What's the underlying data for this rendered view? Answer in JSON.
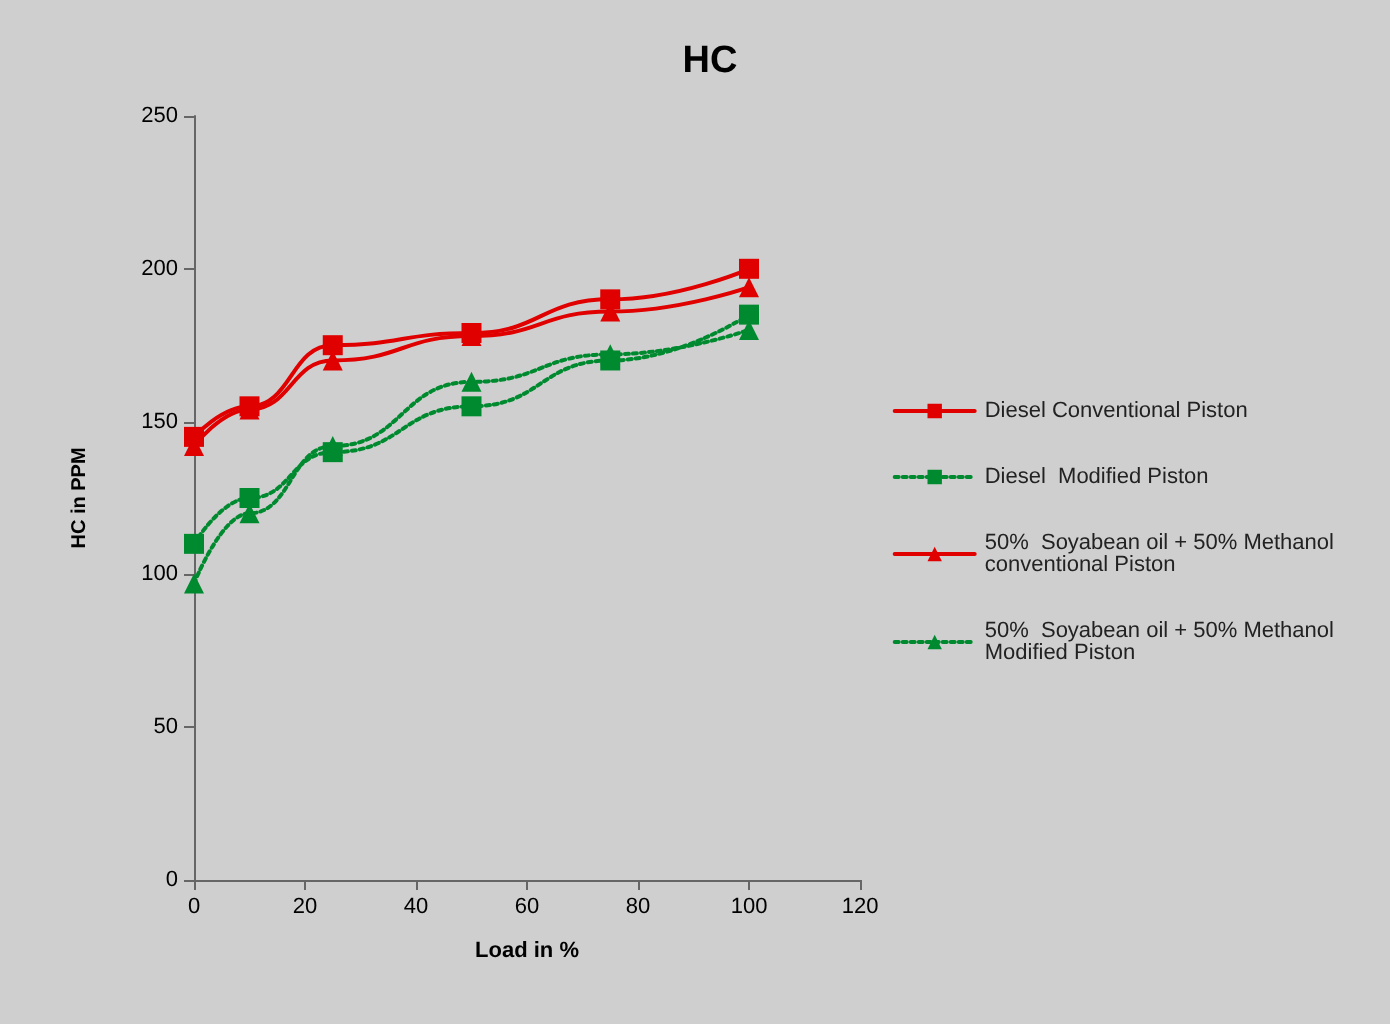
{
  "chart_data": {
    "type": "line",
    "title": "HC",
    "xlabel": "Load in %",
    "ylabel": "HC in PPM",
    "x": [
      0,
      10,
      25,
      50,
      75,
      100
    ],
    "series": [
      {
        "name": "Diesel Conventional Piston",
        "color": "#e00000",
        "marker": "square",
        "line_style": "solid",
        "values": [
          145,
          155,
          175,
          179,
          190,
          200
        ]
      },
      {
        "name": "Diesel  Modified Piston",
        "color": "#008a30",
        "marker": "square",
        "line_style": "dotted",
        "values": [
          110,
          125,
          140,
          155,
          170,
          185
        ]
      },
      {
        "name": "50%  Soyabean oil + 50% Methanol conventional Piston",
        "color": "#e00000",
        "marker": "triangle",
        "line_style": "solid",
        "values": [
          142,
          154,
          170,
          178,
          186,
          194
        ]
      },
      {
        "name": "50%  Soyabean oil + 50% Methanol Modified Piston",
        "color": "#008a30",
        "marker": "triangle",
        "line_style": "dotted",
        "values": [
          97,
          120,
          142,
          163,
          172,
          180
        ]
      }
    ],
    "xlim": [
      0,
      120
    ],
    "xticks": [
      0,
      20,
      40,
      60,
      80,
      100,
      120
    ],
    "ylim": [
      0,
      250
    ],
    "yticks": [
      0,
      50,
      100,
      150,
      200,
      250
    ],
    "grid": false,
    "legend": "right"
  }
}
